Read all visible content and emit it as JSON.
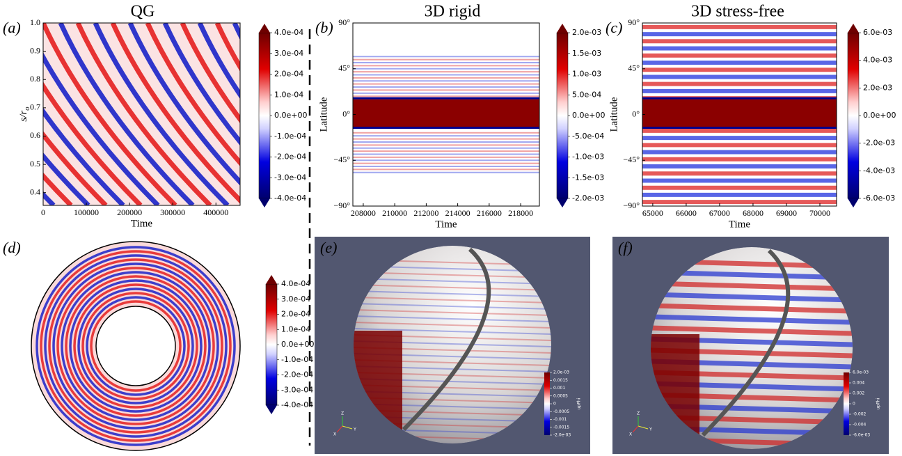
{
  "titles": [
    "QG",
    "3D rigid",
    "3D stress-free"
  ],
  "panels": [
    {
      "label": "(a)",
      "xlabel": "Time",
      "ylabel": {
        "main": "s/r",
        "sub": "o"
      },
      "xlim": [
        0,
        456000
      ],
      "xticks": [
        0,
        100000,
        200000,
        300000,
        400000
      ],
      "ylim": [
        0.355,
        1.0
      ],
      "yticks": [
        0.4,
        0.5,
        0.6,
        0.7,
        0.8,
        0.9,
        {
          "value": 1.0,
          "label": "1.0"
        }
      ],
      "clim": [
        -0.0004,
        0.0004
      ],
      "cticks": [
        {
          "value": 0.0004,
          "label": "4.0e-04"
        },
        {
          "value": 0.0003,
          "label": "3.0e-04"
        },
        {
          "value": 0.0002,
          "label": "2.0e-04"
        },
        {
          "value": 0.0001,
          "label": "1.0e-04"
        },
        {
          "value": 0,
          "label": "0.0e+00"
        },
        {
          "value": -0.0001,
          "label": "-1.0e-04"
        },
        {
          "value": -0.0002,
          "label": "-2.0e-04"
        },
        {
          "value": -0.0003,
          "label": "-3.0e-04"
        },
        {
          "value": -0.0004,
          "label": "-4.0e-04"
        }
      ]
    },
    {
      "label": "(b)",
      "xlabel": "Time",
      "ylabel": "Latitude",
      "xlim": [
        207340,
        219190
      ],
      "xticks": [
        208000,
        210000,
        212000,
        214000,
        216000,
        218000
      ],
      "ylim": [
        -90,
        90
      ],
      "yticks": [
        {
          "value": 90,
          "label": "90°"
        },
        {
          "value": 45,
          "label": "45°"
        },
        {
          "value": 0,
          "label": "0°"
        },
        {
          "value": -45,
          "label": "−45°"
        },
        {
          "value": -90,
          "label": "−90°"
        }
      ],
      "clim": [
        -0.002,
        0.002
      ],
      "cticks": [
        {
          "value": 0.002,
          "label": "2.0e-03"
        },
        {
          "value": 0.0015,
          "label": "1.5e-03"
        },
        {
          "value": 0.001,
          "label": "1.0e-03"
        },
        {
          "value": 0.0005,
          "label": "5.0e-04"
        },
        {
          "value": 0,
          "label": "0.0e+00"
        },
        {
          "value": -0.0005,
          "label": "-5.0e-04"
        },
        {
          "value": -0.001,
          "label": "-1.0e-03"
        },
        {
          "value": -0.0015,
          "label": "-1.5e-03"
        },
        {
          "value": -0.002,
          "label": "-2.0e-03"
        }
      ]
    },
    {
      "label": "(c)",
      "xlabel": "Time",
      "ylabel": "Latitude",
      "xlim": [
        64690,
        70500
      ],
      "xticks": [
        65000,
        66000,
        67000,
        68000,
        69000,
        70000
      ],
      "ylim": [
        -90,
        90
      ],
      "yticks": [
        {
          "value": 90,
          "label": "90°"
        },
        {
          "value": 45,
          "label": "45°"
        },
        {
          "value": 0,
          "label": "0°"
        },
        {
          "value": -45,
          "label": "−45°"
        },
        {
          "value": -90,
          "label": "−90°"
        }
      ],
      "clim": [
        -0.006,
        0.006
      ],
      "cticks": [
        {
          "value": 0.006,
          "label": "6.0e-03"
        },
        {
          "value": 0.004,
          "label": "4.0e-03"
        },
        {
          "value": 0.002,
          "label": "2.0e-03"
        },
        {
          "value": 0,
          "label": "0.0e+00"
        },
        {
          "value": -0.002,
          "label": "-2.0e-03"
        },
        {
          "value": -0.004,
          "label": "-4.0e-03"
        },
        {
          "value": -0.006,
          "label": "-6.0e-03"
        }
      ]
    },
    {
      "label": "(d)",
      "clim": [
        -0.0004,
        0.0004
      ],
      "cticks": [
        {
          "value": 0.0004,
          "label": "4.0e-04"
        },
        {
          "value": 0.0003,
          "label": "3.0e-04"
        },
        {
          "value": 0.0002,
          "label": "2.0e-04"
        },
        {
          "value": 0.0001,
          "label": "1.0e-04"
        },
        {
          "value": 0,
          "label": "0.0e+00"
        },
        {
          "value": -0.0001,
          "label": "-1.0e-04"
        },
        {
          "value": -0.0002,
          "label": "-2.0e-04"
        },
        {
          "value": -0.0003,
          "label": "-3.0e-04"
        },
        {
          "value": -0.0004,
          "label": "-4.0e-04"
        }
      ]
    },
    {
      "label": "(e)",
      "clim": [
        -0.002,
        0.002
      ],
      "clabel": "upPhi",
      "axes": [
        "Z",
        "Y",
        "X"
      ],
      "cticks": [
        {
          "value": 0.002,
          "label": "2.0e-03"
        },
        0.0015,
        0.001,
        0.0005,
        0,
        -0.0005,
        -0.001,
        -0.0015,
        {
          "value": -0.002,
          "label": "-2.0e-03"
        }
      ]
    },
    {
      "label": "(f)",
      "clim": [
        -0.006,
        0.006
      ],
      "clabel": "upPhi",
      "axes": [
        "Z",
        "Y",
        "X"
      ],
      "cticks": [
        {
          "value": 0.006,
          "label": "6.0e-03"
        },
        0.004,
        0.002,
        0,
        -0.002,
        -0.004,
        {
          "value": -0.006,
          "label": "-6.0e-03"
        }
      ]
    }
  ]
}
